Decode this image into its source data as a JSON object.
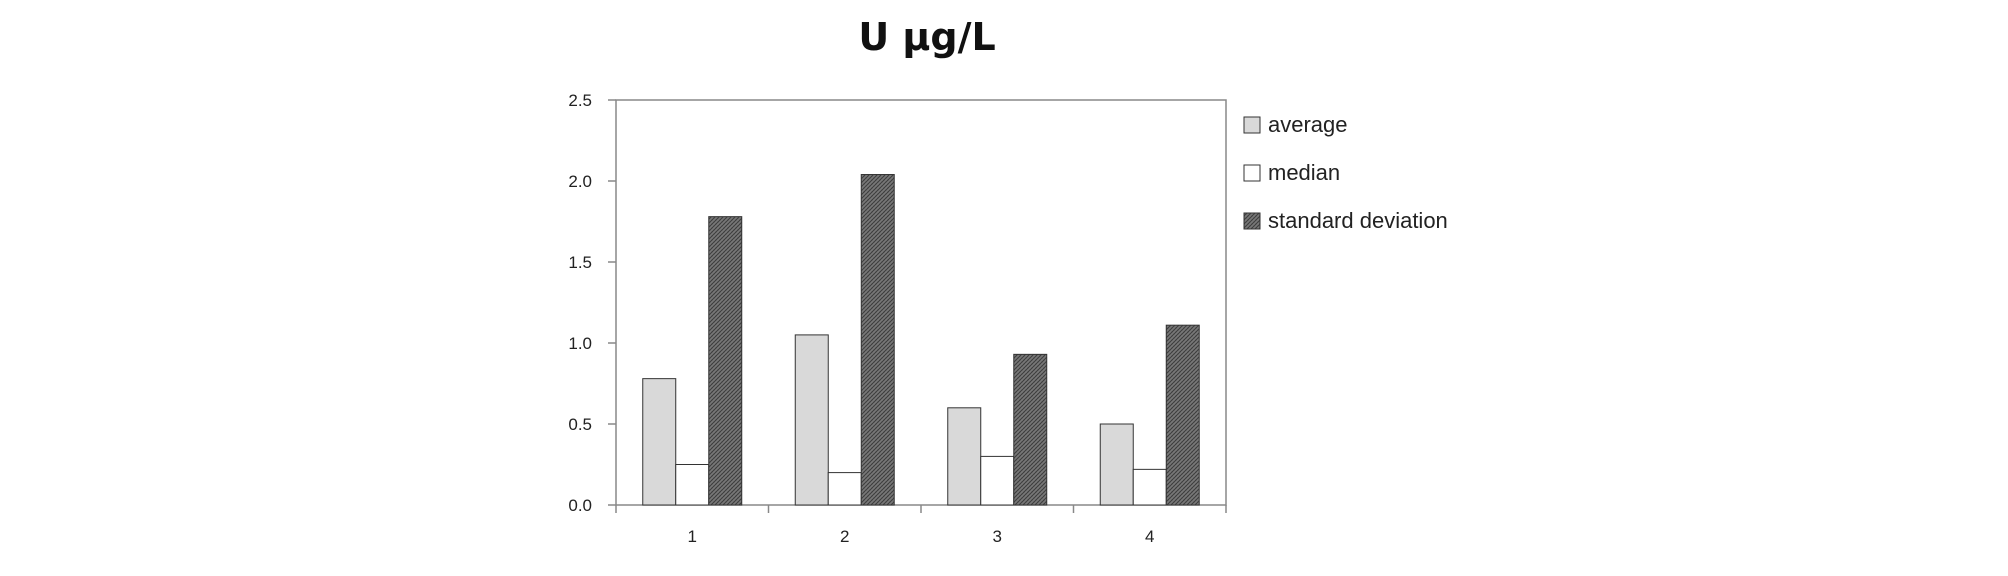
{
  "chart_data": {
    "type": "bar",
    "title": "U µg/L",
    "xlabel": "",
    "ylabel": "",
    "categories": [
      "1",
      "2",
      "3",
      "4"
    ],
    "ylim": [
      0,
      2.5
    ],
    "yticks": [
      "0.0",
      "0.5",
      "1.0",
      "1.5",
      "2.0",
      "2.5"
    ],
    "grid": false,
    "legend_position": "right",
    "series": [
      {
        "name": "average",
        "values": [
          0.78,
          1.05,
          0.6,
          0.5
        ],
        "color": "#d9d9d9",
        "pattern": "solid"
      },
      {
        "name": "median",
        "values": [
          0.25,
          0.2,
          0.3,
          0.22
        ],
        "color": "#ffffff",
        "pattern": "solid"
      },
      {
        "name": "standard deviation",
        "values": [
          1.78,
          2.04,
          0.93,
          1.11
        ],
        "color": "#6e6e6e",
        "pattern": "crosshatch"
      }
    ]
  }
}
